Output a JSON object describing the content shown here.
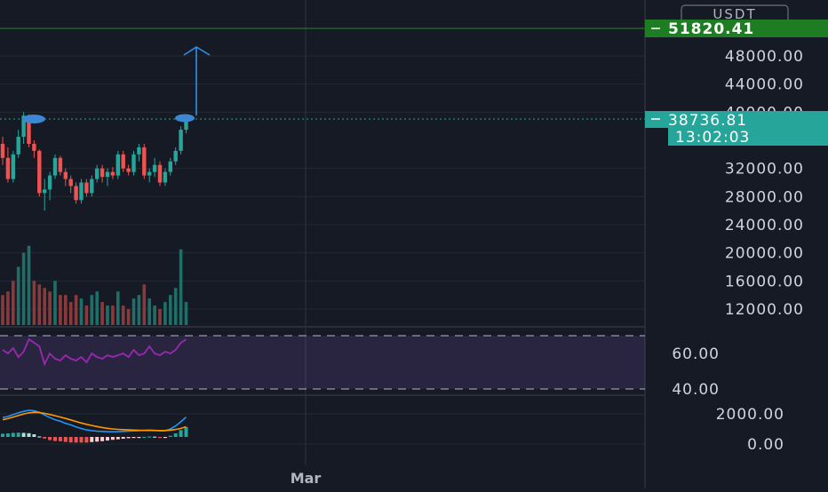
{
  "chart_data": [
    {
      "type": "candlestick",
      "currency": "USDT",
      "ylim": [
        10000,
        54000
      ],
      "y_ticks": [
        "48000.00",
        "44000.00",
        "40000.00",
        "32000.00",
        "28000.00",
        "24000.00",
        "20000.00",
        "16000.00",
        "12000.00"
      ],
      "target_price": "51820.41",
      "last_price": "38736.81",
      "countdown": "13:02:03",
      "x_tick_label": "Mar",
      "annotations": {
        "resistance_level": 38736.81,
        "projected_target": 51820.41
      },
      "candles": [
        {
          "o": 35500,
          "h": 36500,
          "l": 32500,
          "c": 33500
        },
        {
          "o": 33500,
          "h": 35000,
          "l": 30000,
          "c": 30500
        },
        {
          "o": 30500,
          "h": 34500,
          "l": 30000,
          "c": 34000
        },
        {
          "o": 34000,
          "h": 37500,
          "l": 33500,
          "c": 36500
        },
        {
          "o": 36500,
          "h": 40000,
          "l": 35500,
          "c": 39500
        },
        {
          "o": 39500,
          "h": 39700,
          "l": 35000,
          "c": 35500
        },
        {
          "o": 35500,
          "h": 36000,
          "l": 33500,
          "c": 34500
        },
        {
          "o": 34500,
          "h": 34700,
          "l": 28000,
          "c": 28500
        },
        {
          "o": 28500,
          "h": 30500,
          "l": 26000,
          "c": 29000
        },
        {
          "o": 29000,
          "h": 31500,
          "l": 27500,
          "c": 31000
        },
        {
          "o": 31000,
          "h": 34000,
          "l": 30500,
          "c": 33500
        },
        {
          "o": 33500,
          "h": 33800,
          "l": 31000,
          "c": 31500
        },
        {
          "o": 31500,
          "h": 32000,
          "l": 29500,
          "c": 30500
        },
        {
          "o": 30500,
          "h": 31000,
          "l": 28500,
          "c": 29500
        },
        {
          "o": 29500,
          "h": 30000,
          "l": 27000,
          "c": 27500
        },
        {
          "o": 27500,
          "h": 30500,
          "l": 27000,
          "c": 30000
        },
        {
          "o": 30000,
          "h": 30500,
          "l": 28000,
          "c": 28500
        },
        {
          "o": 28500,
          "h": 31000,
          "l": 28000,
          "c": 30500
        },
        {
          "o": 30500,
          "h": 32500,
          "l": 30000,
          "c": 32000
        },
        {
          "o": 32000,
          "h": 32500,
          "l": 30000,
          "c": 30800
        },
        {
          "o": 30800,
          "h": 32000,
          "l": 29500,
          "c": 31500
        },
        {
          "o": 31500,
          "h": 32200,
          "l": 30500,
          "c": 31000
        },
        {
          "o": 31000,
          "h": 34500,
          "l": 30500,
          "c": 34000
        },
        {
          "o": 34000,
          "h": 34500,
          "l": 31500,
          "c": 32000
        },
        {
          "o": 32000,
          "h": 32500,
          "l": 31000,
          "c": 31500
        },
        {
          "o": 31500,
          "h": 34500,
          "l": 31000,
          "c": 34000
        },
        {
          "o": 34000,
          "h": 35500,
          "l": 33000,
          "c": 35000
        },
        {
          "o": 35000,
          "h": 35500,
          "l": 30500,
          "c": 31000
        },
        {
          "o": 31000,
          "h": 32000,
          "l": 30000,
          "c": 31500
        },
        {
          "o": 31500,
          "h": 33500,
          "l": 30800,
          "c": 32500
        },
        {
          "o": 32500,
          "h": 33000,
          "l": 29500,
          "c": 30000
        },
        {
          "o": 30000,
          "h": 32000,
          "l": 29500,
          "c": 31500
        },
        {
          "o": 31500,
          "h": 33500,
          "l": 31000,
          "c": 33000
        },
        {
          "o": 33000,
          "h": 35000,
          "l": 32500,
          "c": 34500
        },
        {
          "o": 34500,
          "h": 38000,
          "l": 34000,
          "c": 37500
        },
        {
          "o": 37500,
          "h": 39000,
          "l": 37000,
          "c": 38700
        }
      ],
      "volume": [
        {
          "v": 14000,
          "up": false
        },
        {
          "v": 14500,
          "up": false
        },
        {
          "v": 16000,
          "up": false
        },
        {
          "v": 18000,
          "up": true
        },
        {
          "v": 20000,
          "up": true
        },
        {
          "v": 21000,
          "up": true
        },
        {
          "v": 16000,
          "up": false
        },
        {
          "v": 15500,
          "up": false
        },
        {
          "v": 15000,
          "up": false
        },
        {
          "v": 14500,
          "up": false
        },
        {
          "v": 16000,
          "up": true
        },
        {
          "v": 14000,
          "up": false
        },
        {
          "v": 14000,
          "up": false
        },
        {
          "v": 13000,
          "up": false
        },
        {
          "v": 14000,
          "up": false
        },
        {
          "v": 13500,
          "up": true
        },
        {
          "v": 12500,
          "up": false
        },
        {
          "v": 14000,
          "up": true
        },
        {
          "v": 14500,
          "up": true
        },
        {
          "v": 13000,
          "up": false
        },
        {
          "v": 12500,
          "up": true
        },
        {
          "v": 12500,
          "up": false
        },
        {
          "v": 14500,
          "up": true
        },
        {
          "v": 12500,
          "up": false
        },
        {
          "v": 12000,
          "up": false
        },
        {
          "v": 13500,
          "up": true
        },
        {
          "v": 14000,
          "up": true
        },
        {
          "v": 15500,
          "up": false
        },
        {
          "v": 13500,
          "up": true
        },
        {
          "v": 12500,
          "up": true
        },
        {
          "v": 12000,
          "up": false
        },
        {
          "v": 13000,
          "up": true
        },
        {
          "v": 14000,
          "up": true
        },
        {
          "v": 15000,
          "up": true
        },
        {
          "v": 20500,
          "up": true
        },
        {
          "v": 13000,
          "up": true
        }
      ]
    },
    {
      "type": "line",
      "ylim": [
        30,
        75
      ],
      "y_ticks": [
        "60.00",
        "40.00"
      ],
      "band": [
        40,
        70
      ],
      "values": [
        62,
        60,
        63,
        58,
        61,
        68,
        66,
        64,
        54,
        60,
        57,
        56,
        59,
        57,
        56,
        58,
        55,
        60,
        58,
        57,
        59,
        58,
        59,
        60,
        58,
        62,
        59,
        60,
        64,
        60,
        59,
        61,
        60,
        62,
        66,
        68
      ]
    },
    {
      "type": "line",
      "ylim": [
        -1400,
        3300
      ],
      "y_ticks": [
        "2000.00",
        "0.00"
      ],
      "series": [
        {
          "values": [
            1600,
            1700,
            1900,
            2050,
            2200,
            2300,
            2250,
            2100,
            1850,
            1600,
            1400,
            1250,
            1050,
            900,
            700,
            550,
            420,
            350,
            300,
            270,
            250,
            240,
            250,
            270,
            300,
            320,
            350,
            380,
            400,
            380,
            330,
            350,
            500,
            800,
            1200,
            1650
          ]
        },
        {
          "values": [
            1400,
            1500,
            1650,
            1800,
            1950,
            2050,
            2100,
            2080,
            2000,
            1900,
            1780,
            1650,
            1520,
            1380,
            1230,
            1080,
            950,
            840,
            740,
            650,
            570,
            510,
            470,
            440,
            420,
            400,
            380,
            370,
            365,
            360,
            355,
            360,
            390,
            460,
            560,
            720
          ]
        }
      ],
      "histogram": [
        300,
        330,
        380,
        400,
        380,
        350,
        250,
        50,
        -150,
        -300,
        -380,
        -400,
        -470,
        -520,
        -530,
        -530,
        -530,
        -480,
        -440,
        -400,
        -340,
        -270,
        -220,
        -170,
        -120,
        -80,
        -30,
        10,
        40,
        30,
        -20,
        -10,
        110,
        340,
        640,
        930
      ]
    }
  ]
}
